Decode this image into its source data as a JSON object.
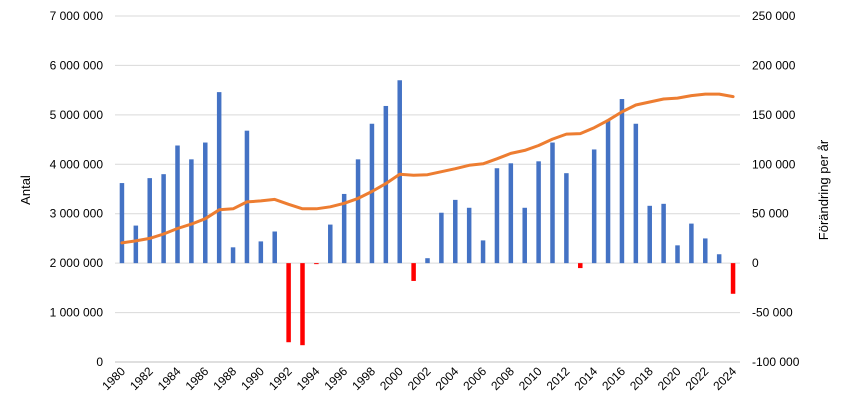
{
  "chart_data": {
    "type": "bar+line",
    "title": "",
    "xlabel": "",
    "ylabel_left": "Antal",
    "ylabel_right": "Förändring per år",
    "ylim_left": [
      0,
      7000000
    ],
    "ylim_right": [
      -100000,
      250000
    ],
    "left_ticks": [
      "0",
      "1 000 000",
      "2 000 000",
      "3 000 000",
      "4 000 000",
      "5 000 000",
      "6 000 000",
      "7 000 000"
    ],
    "right_ticks": [
      "-100 000",
      "-50 000",
      "0",
      "50 000",
      "100 000",
      "150 000",
      "200 000",
      "250 000"
    ],
    "x_tick_labels": [
      "1980",
      "1982",
      "1984",
      "1986",
      "1988",
      "1990",
      "1992",
      "1994",
      "1996",
      "1998",
      "2000",
      "2002",
      "2004",
      "2006",
      "2008",
      "2010",
      "2012",
      "2014",
      "2016",
      "2018",
      "2020",
      "2022",
      "2024"
    ],
    "years": [
      1980,
      1981,
      1982,
      1983,
      1984,
      1985,
      1986,
      1987,
      1988,
      1989,
      1990,
      1991,
      1992,
      1993,
      1994,
      1995,
      1996,
      1997,
      1998,
      1999,
      2000,
      2001,
      2002,
      2003,
      2004,
      2005,
      2006,
      2007,
      2008,
      2009,
      2010,
      2011,
      2012,
      2013,
      2014,
      2015,
      2016,
      2017,
      2018,
      2019,
      2020,
      2021,
      2022,
      2023,
      2024
    ],
    "series": [
      {
        "type": "bar",
        "axis": "right",
        "color_positive": "#4472C4",
        "color_negative": "#FF0000",
        "values": [
          81000,
          38000,
          86000,
          90000,
          119000,
          105000,
          122000,
          173000,
          16000,
          134000,
          22000,
          32000,
          -80000,
          -83000,
          -1000,
          39000,
          70000,
          105000,
          141000,
          159000,
          185000,
          -18000,
          5000,
          51000,
          64000,
          56000,
          23000,
          96000,
          101000,
          56000,
          103000,
          122000,
          91000,
          -5000,
          115000,
          145000,
          166000,
          141000,
          58000,
          60000,
          18000,
          40000,
          25000,
          9000,
          -31000
        ]
      },
      {
        "type": "line",
        "axis": "left",
        "color": "#ED7D31",
        "values": [
          2410000,
          2450000,
          2500000,
          2590000,
          2700000,
          2790000,
          2900000,
          3080000,
          3100000,
          3240000,
          3260000,
          3290000,
          3190000,
          3100000,
          3100000,
          3140000,
          3210000,
          3310000,
          3450000,
          3610000,
          3800000,
          3780000,
          3790000,
          3850000,
          3910000,
          3980000,
          4010000,
          4110000,
          4220000,
          4280000,
          4380000,
          4510000,
          4610000,
          4620000,
          4740000,
          4890000,
          5060000,
          5200000,
          5260000,
          5320000,
          5340000,
          5390000,
          5420000,
          5420000,
          5370000
        ]
      }
    ]
  }
}
